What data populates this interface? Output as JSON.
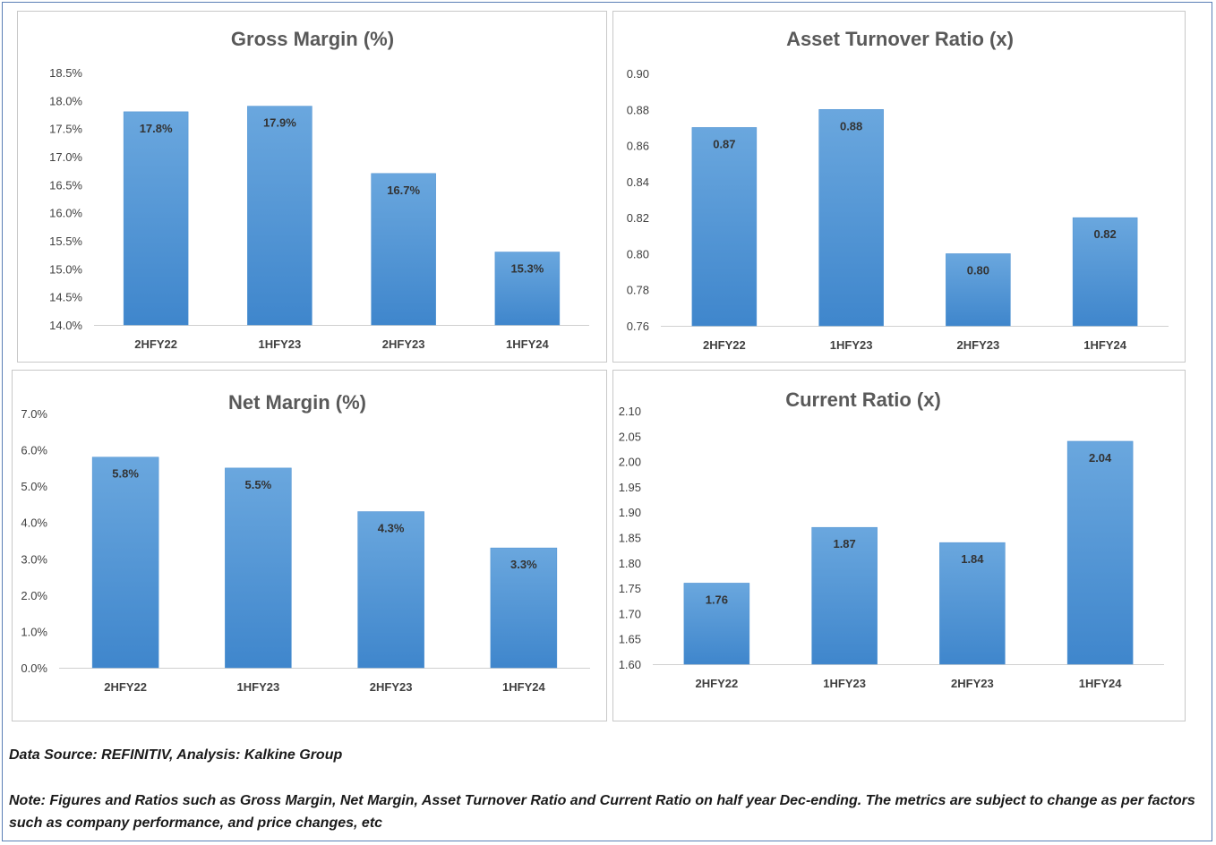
{
  "chart_data": [
    {
      "type": "bar",
      "title": "Gross Margin (%)",
      "categories": [
        "2HFY22",
        "1HFY23",
        "2HFY23",
        "1HFY24"
      ],
      "values": [
        17.8,
        17.9,
        16.7,
        15.3
      ],
      "value_labels": [
        "17.8%",
        "17.9%",
        "16.7%",
        "15.3%"
      ],
      "yticks": [
        "14.0%",
        "14.5%",
        "15.0%",
        "15.5%",
        "16.0%",
        "16.5%",
        "17.0%",
        "17.5%",
        "18.0%",
        "18.5%"
      ],
      "ylim": [
        14.0,
        18.5
      ],
      "grid": false,
      "legend": "none",
      "bar_color": "#5b9bd5"
    },
    {
      "type": "bar",
      "title": "Asset Turnover Ratio (x)",
      "categories": [
        "2HFY22",
        "1HFY23",
        "2HFY23",
        "1HFY24"
      ],
      "values": [
        0.87,
        0.88,
        0.8,
        0.82
      ],
      "value_labels": [
        "0.87",
        "0.88",
        "0.80",
        "0.82"
      ],
      "yticks": [
        "0.76",
        "0.78",
        "0.80",
        "0.82",
        "0.84",
        "0.86",
        "0.88",
        "0.90"
      ],
      "ylim": [
        0.76,
        0.9
      ],
      "grid": false,
      "legend": "none",
      "bar_color": "#5b9bd5"
    },
    {
      "type": "bar",
      "title": "Net Margin (%)",
      "categories": [
        "2HFY22",
        "1HFY23",
        "2HFY23",
        "1HFY24"
      ],
      "values": [
        5.8,
        5.5,
        4.3,
        3.3
      ],
      "value_labels": [
        "5.8%",
        "5.5%",
        "4.3%",
        "3.3%"
      ],
      "yticks": [
        "0.0%",
        "1.0%",
        "2.0%",
        "3.0%",
        "4.0%",
        "5.0%",
        "6.0%",
        "7.0%"
      ],
      "ylim": [
        0.0,
        7.0
      ],
      "grid": false,
      "legend": "none",
      "bar_color": "#5b9bd5"
    },
    {
      "type": "bar",
      "title": "Current Ratio (x)",
      "categories": [
        "2HFY22",
        "1HFY23",
        "2HFY23",
        "1HFY24"
      ],
      "values": [
        1.76,
        1.87,
        1.84,
        2.04
      ],
      "value_labels": [
        "1.76",
        "1.87",
        "1.84",
        "2.04"
      ],
      "yticks": [
        "1.60",
        "1.65",
        "1.70",
        "1.75",
        "1.80",
        "1.85",
        "1.90",
        "1.95",
        "2.00",
        "2.05",
        "2.10"
      ],
      "ylim": [
        1.6,
        2.1
      ],
      "grid": false,
      "legend": "none",
      "bar_color": "#5b9bd5"
    }
  ],
  "footer": {
    "source": "Data Source: REFINITIV, Analysis: Kalkine Group",
    "note": "Note: Figures and Ratios such as Gross Margin, Net Margin, Asset Turnover Ratio and Current Ratio on half year Dec-ending. The metrics are subject to change as per factors such as company performance, and price changes, etc"
  }
}
